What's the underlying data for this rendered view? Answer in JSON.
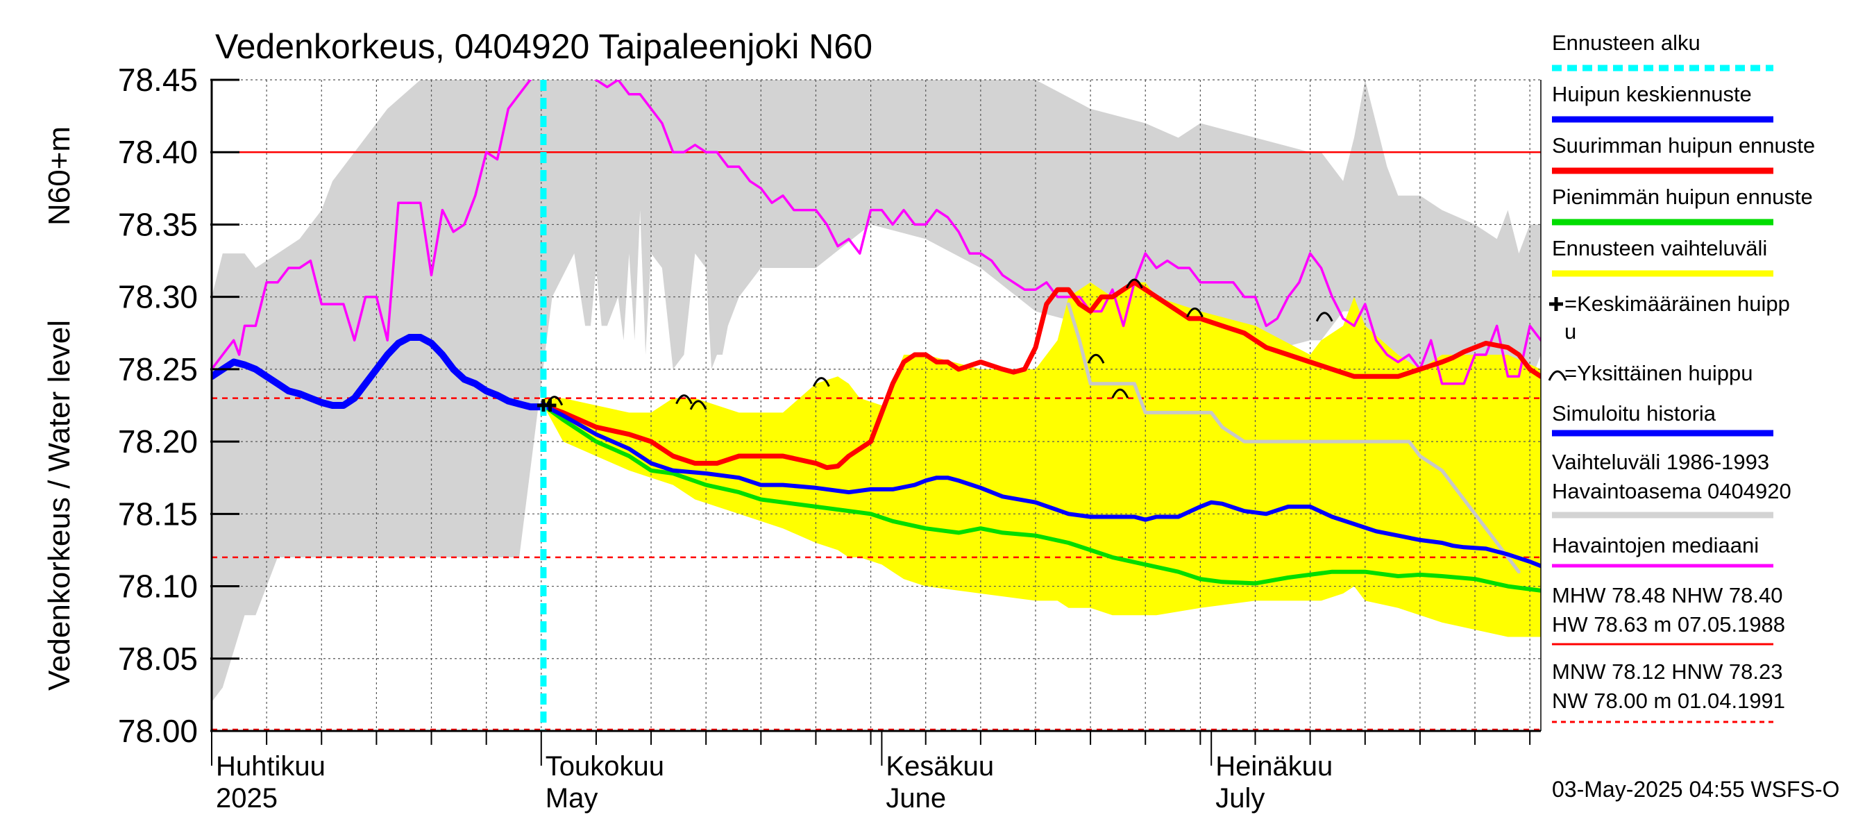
{
  "chart_data": {
    "type": "line",
    "title": "Vedenkorkeus, 0404920 Taipaleenjoki N60",
    "ylabel_main": "Vedenkorkeus / Water level",
    "ylabel_unit": "N60+m",
    "ylim": [
      78.0,
      78.45
    ],
    "yticks": [
      "78.00",
      "78.05",
      "78.10",
      "78.15",
      "78.20",
      "78.25",
      "78.30",
      "78.35",
      "78.40",
      "78.45"
    ],
    "ytick_values": [
      78.0,
      78.05,
      78.1,
      78.15,
      78.2,
      78.25,
      78.3,
      78.35,
      78.4,
      78.45
    ],
    "xlim_days": [
      0,
      121
    ],
    "month_labels": [
      {
        "day": 0,
        "fi": "Huhtikuu",
        "en": "2025"
      },
      {
        "day": 30,
        "fi": "Toukokuu",
        "en": "May"
      },
      {
        "day": 61,
        "fi": "Kesäkuu",
        "en": "June"
      },
      {
        "day": 91,
        "fi": "Heinäkuu",
        "en": "July"
      }
    ],
    "forecast_start_day": 30.2,
    "reference_lines": {
      "NHW": 78.4,
      "HNW": 78.23,
      "MNW": 78.12,
      "NW": 78.0
    },
    "range_band": {
      "days": [
        0,
        1,
        3,
        4,
        6,
        8,
        10,
        11,
        13,
        16,
        19,
        22,
        25,
        28,
        31,
        33,
        34,
        34.5,
        35,
        35.5,
        36,
        37,
        37.5,
        38,
        38.5,
        39,
        39.5,
        40,
        41,
        42,
        43,
        44,
        45,
        45.5,
        46,
        46.5,
        47,
        48,
        50,
        55,
        60,
        65,
        70,
        75,
        80,
        85,
        88,
        90,
        95,
        100,
        101,
        103,
        104,
        105,
        106,
        107,
        108,
        110,
        112,
        115,
        117,
        118,
        119,
        120,
        121
      ],
      "upper": [
        78.3,
        78.33,
        78.33,
        78.32,
        78.33,
        78.34,
        78.36,
        78.38,
        78.4,
        78.43,
        78.45,
        78.45,
        78.45,
        78.45,
        78.45,
        78.45,
        78.45,
        78.45,
        78.45,
        78.45,
        78.45,
        78.45,
        78.45,
        78.45,
        78.45,
        78.45,
        78.45,
        78.45,
        78.45,
        78.45,
        78.45,
        78.45,
        78.45,
        78.45,
        78.45,
        78.45,
        78.45,
        78.45,
        78.45,
        78.45,
        78.45,
        78.45,
        78.45,
        78.45,
        78.43,
        78.42,
        78.41,
        78.42,
        78.41,
        78.4,
        78.4,
        78.38,
        78.41,
        78.45,
        78.42,
        78.39,
        78.37,
        78.37,
        78.36,
        78.35,
        78.34,
        78.36,
        78.33,
        78.35,
        78.35
      ],
      "lower": [
        78.02,
        78.03,
        78.08,
        78.08,
        78.12,
        78.12,
        78.12,
        78.12,
        78.12,
        78.12,
        78.12,
        78.12,
        78.12,
        78.12,
        78.3,
        78.33,
        78.28,
        78.28,
        78.32,
        78.28,
        78.28,
        78.3,
        78.27,
        78.33,
        78.27,
        78.36,
        78.26,
        78.33,
        78.32,
        78.25,
        78.26,
        78.33,
        78.32,
        78.25,
        78.26,
        78.26,
        78.28,
        78.3,
        78.32,
        78.32,
        78.35,
        78.34,
        78.32,
        78.29,
        78.28,
        78.28,
        78.28,
        78.27,
        78.26,
        78.27,
        78.27,
        78.29,
        78.29,
        78.27,
        78.27,
        78.26,
        78.25,
        78.25,
        78.26,
        78.26,
        78.25,
        78.25,
        78.25,
        78.24,
        78.26
      ]
    },
    "series": [
      {
        "name": "Havaintojen mediaani",
        "color": "#ff00ff",
        "days": [
          0,
          1,
          2,
          2.5,
          3,
          3.5,
          4,
          5,
          6,
          7,
          8,
          9,
          10,
          11,
          12,
          13,
          14,
          15,
          16,
          17,
          18,
          19,
          20,
          21,
          22,
          23,
          24,
          25,
          26,
          27,
          28,
          29,
          30,
          31,
          32,
          33,
          34,
          35,
          36,
          37,
          38,
          39,
          40,
          41,
          42,
          43,
          44,
          45,
          46,
          47,
          48,
          49,
          50,
          51,
          52,
          53,
          54,
          55,
          56,
          57,
          58,
          59,
          60,
          61,
          62,
          63,
          64,
          65,
          66,
          67,
          68,
          69,
          70,
          71,
          72,
          73,
          74,
          75,
          76,
          77,
          78,
          79,
          80,
          81,
          82,
          83,
          84,
          85,
          86,
          87,
          88,
          89,
          90,
          91,
          92,
          93,
          94,
          95,
          96,
          97,
          98,
          99,
          100,
          101,
          102,
          103,
          104,
          105,
          106,
          107,
          108,
          109,
          110,
          111,
          112,
          113,
          114,
          115,
          116,
          117,
          118,
          119,
          120,
          121
        ],
        "values": [
          78.25,
          78.26,
          78.27,
          78.26,
          78.28,
          78.28,
          78.28,
          78.31,
          78.31,
          78.32,
          78.32,
          78.325,
          78.295,
          78.295,
          78.295,
          78.27,
          78.3,
          78.3,
          78.27,
          78.365,
          78.365,
          78.365,
          78.315,
          78.36,
          78.345,
          78.35,
          78.37,
          78.4,
          78.395,
          78.43,
          78.44,
          78.45,
          78.46,
          78.47,
          78.47,
          78.46,
          78.455,
          78.45,
          78.445,
          78.45,
          78.44,
          78.44,
          78.43,
          78.42,
          78.4,
          78.4,
          78.405,
          78.4,
          78.4,
          78.39,
          78.39,
          78.38,
          78.375,
          78.365,
          78.37,
          78.36,
          78.36,
          78.36,
          78.35,
          78.335,
          78.34,
          78.33,
          78.36,
          78.36,
          78.35,
          78.36,
          78.35,
          78.35,
          78.36,
          78.355,
          78.345,
          78.33,
          78.33,
          78.325,
          78.315,
          78.31,
          78.305,
          78.305,
          78.31,
          78.3,
          78.3,
          78.3,
          78.29,
          78.29,
          78.305,
          78.28,
          78.31,
          78.33,
          78.32,
          78.325,
          78.32,
          78.32,
          78.31,
          78.31,
          78.31,
          78.31,
          78.3,
          78.3,
          78.28,
          78.285,
          78.3,
          78.31,
          78.33,
          78.32,
          78.3,
          78.285,
          78.28,
          78.295,
          78.27,
          78.26,
          78.255,
          78.26,
          78.25,
          78.27,
          78.24,
          78.24,
          78.24,
          78.26,
          78.26,
          78.28,
          78.245,
          78.245,
          78.28,
          78.27
        ]
      },
      {
        "name": "Vaihteluväli 1986-1993 Havaintoasema 0404920 (alaraja)",
        "color": "#c8c8c8",
        "days": [
          78,
          79,
          80,
          81,
          82,
          83,
          84,
          85,
          86,
          87,
          88,
          89,
          90,
          91,
          92,
          93,
          94,
          95,
          96,
          97,
          98,
          100,
          105,
          109,
          110,
          112,
          114,
          116,
          118,
          119
        ],
        "values": [
          78.295,
          78.27,
          78.24,
          78.24,
          78.24,
          78.24,
          78.24,
          78.22,
          78.22,
          78.22,
          78.22,
          78.22,
          78.22,
          78.22,
          78.21,
          78.205,
          78.2,
          78.2,
          78.2,
          78.2,
          78.2,
          78.2,
          78.2,
          78.2,
          78.19,
          78.18,
          78.16,
          78.14,
          78.12,
          78.11
        ]
      },
      {
        "name": "Ennusteen vaihteluväli",
        "color": "#ffff00",
        "days": [
          30.2,
          32,
          35,
          38,
          40,
          42,
          44,
          46,
          48,
          50,
          52,
          55,
          57,
          58,
          59,
          61,
          62,
          63,
          65,
          70,
          75,
          77,
          78,
          80,
          82,
          84,
          85,
          86,
          90,
          95,
          100,
          101,
          103,
          104,
          105,
          108,
          110,
          112,
          115,
          118,
          121
        ],
        "upper": [
          78.23,
          78.23,
          78.225,
          78.22,
          78.22,
          78.23,
          78.23,
          78.225,
          78.22,
          78.22,
          78.22,
          78.24,
          78.245,
          78.24,
          78.23,
          78.225,
          78.24,
          78.26,
          78.26,
          78.25,
          78.25,
          78.27,
          78.3,
          78.31,
          78.3,
          78.31,
          78.31,
          78.3,
          78.29,
          78.28,
          78.26,
          78.27,
          78.28,
          78.3,
          78.28,
          78.26,
          78.25,
          78.26,
          78.26,
          78.26,
          78.25
        ],
        "lower": [
          78.225,
          78.2,
          78.19,
          78.18,
          78.175,
          78.17,
          78.16,
          78.155,
          78.15,
          78.145,
          78.14,
          78.13,
          78.125,
          78.12,
          78.12,
          78.115,
          78.11,
          78.105,
          78.1,
          78.095,
          78.09,
          78.09,
          78.085,
          78.085,
          78.08,
          78.08,
          78.08,
          78.08,
          78.085,
          78.09,
          78.09,
          78.09,
          78.095,
          78.1,
          78.09,
          78.085,
          78.08,
          78.075,
          78.07,
          78.065,
          78.065
        ]
      },
      {
        "name": "Suurimman huipun ennuste",
        "color": "#ff0000",
        "days": [
          30.2,
          32,
          35,
          38,
          40,
          42,
          44,
          46,
          48,
          50,
          52,
          55,
          56,
          57,
          58,
          59,
          60,
          61,
          62,
          63,
          64,
          65,
          66,
          67,
          68,
          70,
          72,
          73,
          74,
          75,
          76,
          77,
          78,
          79,
          80,
          81,
          82,
          83,
          84,
          85,
          86,
          87,
          88,
          89,
          90,
          92,
          94,
          96,
          98,
          100,
          102,
          104,
          106,
          108,
          110,
          112,
          113,
          114,
          115,
          116,
          118,
          119,
          120,
          121
        ],
        "values": [
          78.225,
          78.22,
          78.21,
          78.205,
          78.2,
          78.19,
          78.185,
          78.185,
          78.19,
          78.19,
          78.19,
          78.185,
          78.182,
          78.183,
          78.19,
          78.195,
          78.2,
          78.22,
          78.24,
          78.255,
          78.26,
          78.26,
          78.255,
          78.255,
          78.25,
          78.255,
          78.25,
          78.248,
          78.25,
          78.265,
          78.295,
          78.305,
          78.305,
          78.295,
          78.29,
          78.3,
          78.3,
          78.305,
          78.31,
          78.305,
          78.3,
          78.295,
          78.29,
          78.285,
          78.285,
          78.28,
          78.275,
          78.265,
          78.26,
          78.255,
          78.25,
          78.245,
          78.245,
          78.245,
          78.25,
          78.255,
          78.258,
          78.262,
          78.265,
          78.268,
          78.265,
          78.26,
          78.25,
          78.245
        ]
      },
      {
        "name": "Pienimmän huipun ennuste",
        "color": "#00dd00",
        "days": [
          30.2,
          32,
          35,
          38,
          40,
          42,
          45,
          48,
          50,
          55,
          60,
          62,
          65,
          68,
          70,
          72,
          75,
          78,
          80,
          82,
          85,
          88,
          90,
          92,
          95,
          98,
          100,
          102,
          105,
          108,
          110,
          112,
          115,
          118,
          121
        ],
        "values": [
          78.225,
          78.215,
          78.2,
          78.19,
          78.18,
          78.178,
          78.17,
          78.165,
          78.16,
          78.155,
          78.15,
          78.145,
          78.14,
          78.137,
          78.14,
          78.137,
          78.135,
          78.13,
          78.125,
          78.12,
          78.115,
          78.11,
          78.105,
          78.103,
          78.102,
          78.106,
          78.108,
          78.11,
          78.11,
          78.107,
          78.108,
          78.107,
          78.105,
          78.1,
          78.097
        ]
      },
      {
        "name": "Huipun keskiennuste",
        "color": "#0000ff",
        "days": [
          30.2,
          32,
          35,
          38,
          40,
          42,
          45,
          48,
          50,
          52,
          55,
          58,
          60,
          62,
          64,
          65,
          66,
          67,
          68,
          70,
          72,
          75,
          78,
          80,
          82,
          84,
          85,
          86,
          88,
          90,
          91,
          92,
          94,
          96,
          98,
          100,
          102,
          104,
          106,
          108,
          110,
          112,
          113,
          114,
          116,
          118,
          120,
          121
        ],
        "values": [
          78.225,
          78.218,
          78.205,
          78.195,
          78.185,
          78.18,
          78.178,
          78.175,
          78.17,
          78.17,
          78.168,
          78.165,
          78.167,
          78.167,
          78.17,
          78.173,
          78.175,
          78.175,
          78.173,
          78.168,
          78.162,
          78.158,
          78.15,
          78.148,
          78.148,
          78.148,
          78.146,
          78.148,
          78.148,
          78.155,
          78.158,
          78.157,
          78.152,
          78.15,
          78.155,
          78.155,
          78.148,
          78.143,
          78.138,
          78.135,
          78.132,
          78.13,
          78.128,
          78.127,
          78.126,
          78.122,
          78.117,
          78.114
        ]
      },
      {
        "name": "Simuloitu historia",
        "color": "#0000ff",
        "days": [
          0,
          1,
          2,
          3,
          4,
          5,
          6,
          7,
          8,
          9,
          10,
          11,
          12,
          13,
          14,
          15,
          16,
          17,
          18,
          19,
          20,
          21,
          22,
          23,
          24,
          25,
          26,
          27,
          28,
          29,
          30,
          30.2
        ],
        "values": [
          78.245,
          78.25,
          78.255,
          78.253,
          78.25,
          78.245,
          78.24,
          78.235,
          78.233,
          78.23,
          78.227,
          78.225,
          78.225,
          78.23,
          78.24,
          78.25,
          78.26,
          78.268,
          78.272,
          78.272,
          78.268,
          78.26,
          78.25,
          78.243,
          78.24,
          78.235,
          78.232,
          78.228,
          78.226,
          78.224,
          78.224,
          78.225
        ]
      }
    ],
    "single_peaks": [
      {
        "day": 43.0,
        "value": 78.23
      },
      {
        "day": 44.3,
        "value": 78.226
      },
      {
        "day": 55.5,
        "value": 78.242
      },
      {
        "day": 80.5,
        "value": 78.258
      },
      {
        "day": 82.7,
        "value": 78.234
      },
      {
        "day": 84.0,
        "value": 78.31
      },
      {
        "day": 89.5,
        "value": 78.29
      },
      {
        "day": 101.3,
        "value": 78.287
      },
      {
        "day": 31.2,
        "value": 78.229
      }
    ],
    "mean_peaks": [
      {
        "day": 30.2,
        "value": 78.225
      },
      {
        "day": 30.8,
        "value": 78.225
      }
    ],
    "legend": {
      "items": [
        {
          "label": "Ennusteen alku",
          "color": "#00ffff",
          "style": "dashed"
        },
        {
          "label": "Huipun keskiennuste",
          "color": "#0000ff",
          "style": "solid"
        },
        {
          "label": "Suurimman huipun ennuste",
          "color": "#ff0000",
          "style": "solid"
        },
        {
          "label": "Pienimmän huipun ennuste",
          "color": "#00dd00",
          "style": "solid"
        },
        {
          "label": "Ennusteen vaihteluväli",
          "color": "#ffff00",
          "style": "solid"
        }
      ],
      "mean_peak_line1": "=Keskimääräinen huipp",
      "mean_peak_line2": "u",
      "single_peak_text": "=Yksittäinen huippu",
      "sim_history": "Simuloitu historia",
      "range_text_1": "Vaihteluväli 1986-1993",
      "range_text_2": " Havaintoasema 0404920",
      "median_text": "Havaintojen mediaani",
      "stats1_line1": "MHW  78.48 NHW  78.40",
      "stats1_line2": "HW  78.63 m 07.05.1988",
      "stats2_line1": "MNW  78.12 HNW  78.23",
      "stats2_line2": "NW  78.00 m 01.04.1991"
    },
    "timestamp": "03-May-2025 04:55 WSFS-O",
    "colors": {
      "range_grey": "#d3d3d3",
      "forecast_yellow": "#ffff00",
      "forecast_start": "#00ffff",
      "median": "#ff00ff",
      "max_forecast": "#ff0000",
      "min_forecast": "#00dd00",
      "mean_forecast": "#0000ff"
    }
  }
}
